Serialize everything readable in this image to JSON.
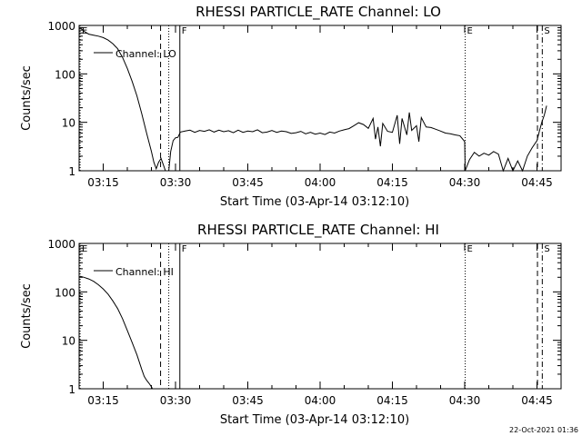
{
  "footer_timestamp": "22-Oct-2021 01:36",
  "chart_data": [
    {
      "type": "line",
      "title": "RHESSI PARTICLE_RATE Channel: LO",
      "xlabel": "Start Time (03-Apr-14 03:12:10)",
      "ylabel": "Counts/sec",
      "yscale": "log",
      "ylim": [
        1,
        1000
      ],
      "xlim_min": [
        190,
        290
      ],
      "x_ticks": [
        {
          "min": 195,
          "label": "03:15"
        },
        {
          "min": 210,
          "label": "03:30"
        },
        {
          "min": 225,
          "label": "03:45"
        },
        {
          "min": 240,
          "label": "04:00"
        },
        {
          "min": 255,
          "label": "04:15"
        },
        {
          "min": 270,
          "label": "04:30"
        },
        {
          "min": 285,
          "label": "04:45"
        }
      ],
      "y_ticks": [
        {
          "value": 1,
          "label": "1"
        },
        {
          "value": 10,
          "label": "10"
        },
        {
          "value": 100,
          "label": "100"
        },
        {
          "value": 1000,
          "label": "1000"
        }
      ],
      "legend": {
        "label": "Channel: LO",
        "position": "top-left"
      },
      "markers": [
        {
          "min": 190.2,
          "label": "E",
          "style": "dotted"
        },
        {
          "min": 206.9,
          "label": "",
          "style": "dashed"
        },
        {
          "min": 208.6,
          "label": "",
          "style": "dotted"
        },
        {
          "min": 210.9,
          "label": "F",
          "style": "solid"
        },
        {
          "min": 270.1,
          "label": "E",
          "style": "dotted"
        },
        {
          "min": 285.1,
          "label": "",
          "style": "dashed"
        },
        {
          "min": 286.1,
          "label": "S",
          "style": "dashdot"
        }
      ],
      "series": [
        {
          "name": "Channel: LO",
          "segments": [
            {
              "x": [
                190.2,
                191,
                192,
                193,
                194,
                195,
                196,
                197,
                198,
                199,
                200,
                201,
                202,
                203,
                204,
                205,
                205.5,
                206,
                206.5,
                207,
                207.5,
                207.9
              ],
              "y": [
                900,
                760,
                660,
                630,
                600,
                560,
                500,
                420,
                330,
                220,
                130,
                70,
                35,
                15,
                6,
                2.5,
                1.5,
                1.1,
                1.5,
                1.8,
                1.3,
                1.0
              ]
            },
            {
              "x": [
                208.6,
                209,
                209.5,
                210,
                210.5,
                211,
                212,
                213,
                214,
                215,
                216,
                217,
                218,
                219,
                220,
                221,
                222,
                223,
                224,
                225,
                226,
                227,
                228,
                229,
                230,
                231,
                232,
                233,
                234,
                235,
                236,
                237,
                238,
                239,
                240,
                241,
                242,
                243,
                244,
                245,
                246,
                247,
                248,
                249,
                250,
                251,
                251.5,
                252,
                252.5,
                253,
                254,
                255,
                256,
                256.5,
                257,
                258,
                258.5,
                259,
                260,
                260.5,
                261,
                262,
                263,
                264,
                265,
                266,
                267,
                268,
                269,
                270,
                270.1
              ],
              "y": [
                1.0,
                2.5,
                4.2,
                4.8,
                4.9,
                6.3,
                6.6,
                6.9,
                6.2,
                6.8,
                6.5,
                7.0,
                6.3,
                6.9,
                6.4,
                6.7,
                6.1,
                6.9,
                6.2,
                6.6,
                6.4,
                7.0,
                6.1,
                6.3,
                6.8,
                6.2,
                6.6,
                6.4,
                5.9,
                6.1,
                6.5,
                5.8,
                6.2,
                5.7,
                6.0,
                5.6,
                6.3,
                6.0,
                6.6,
                7.0,
                7.4,
                8.5,
                9.8,
                9.0,
                7.5,
                12.0,
                4.5,
                8.0,
                3.2,
                9.5,
                6.5,
                6.2,
                14.0,
                3.6,
                12.0,
                5.5,
                16.0,
                6.8,
                8.5,
                4.0,
                12.5,
                8.0,
                7.8,
                7.2,
                6.6,
                6.0,
                5.8,
                5.5,
                5.3,
                4.0,
                1.0
              ]
            },
            {
              "x": [
                270.1,
                271,
                272,
                273,
                274,
                275,
                276,
                277,
                278,
                279,
                280,
                281,
                282,
                283,
                284,
                285,
                285.5,
                286,
                286.5,
                287
              ],
              "y": [
                1.0,
                1.7,
                2.4,
                2.0,
                2.3,
                2.1,
                2.5,
                2.2,
                1.0,
                1.8,
                1.0,
                1.6,
                1.0,
                2.0,
                3.0,
                4.2,
                6.5,
                10.0,
                14.0,
                22.0
              ]
            }
          ]
        }
      ]
    },
    {
      "type": "line",
      "title": "RHESSI PARTICLE_RATE Channel: HI",
      "xlabel": "Start Time (03-Apr-14 03:12:10)",
      "ylabel": "Counts/sec",
      "yscale": "log",
      "ylim": [
        1,
        1000
      ],
      "xlim_min": [
        190,
        290
      ],
      "x_ticks": [
        {
          "min": 195,
          "label": "03:15"
        },
        {
          "min": 210,
          "label": "03:30"
        },
        {
          "min": 225,
          "label": "03:45"
        },
        {
          "min": 240,
          "label": "04:00"
        },
        {
          "min": 255,
          "label": "04:15"
        },
        {
          "min": 270,
          "label": "04:30"
        },
        {
          "min": 285,
          "label": "04:45"
        }
      ],
      "y_ticks": [
        {
          "value": 1,
          "label": "1"
        },
        {
          "value": 10,
          "label": "10"
        },
        {
          "value": 100,
          "label": "100"
        },
        {
          "value": 1000,
          "label": "1000"
        }
      ],
      "legend": {
        "label": "Channel: HI",
        "position": "top-left"
      },
      "markers": [
        {
          "min": 190.2,
          "label": "E",
          "style": "dotted"
        },
        {
          "min": 206.9,
          "label": "",
          "style": "dashed"
        },
        {
          "min": 208.6,
          "label": "",
          "style": "dotted"
        },
        {
          "min": 210.9,
          "label": "F",
          "style": "solid"
        },
        {
          "min": 270.1,
          "label": "E",
          "style": "dotted"
        },
        {
          "min": 285.1,
          "label": "",
          "style": "dashed"
        },
        {
          "min": 286.1,
          "label": "S",
          "style": "dashdot"
        }
      ],
      "series": [
        {
          "name": "Channel: HI",
          "segments": [
            {
              "x": [
                190.2,
                191,
                192,
                193,
                194,
                195,
                196,
                197,
                198,
                199,
                200,
                201,
                202,
                203,
                203.5,
                204,
                204.5,
                205,
                205.2
              ],
              "y": [
                210,
                200,
                185,
                165,
                140,
                115,
                90,
                65,
                45,
                28,
                16,
                9,
                5,
                2.5,
                1.8,
                1.5,
                1.3,
                1.1,
                1.0
              ]
            }
          ]
        }
      ]
    }
  ]
}
